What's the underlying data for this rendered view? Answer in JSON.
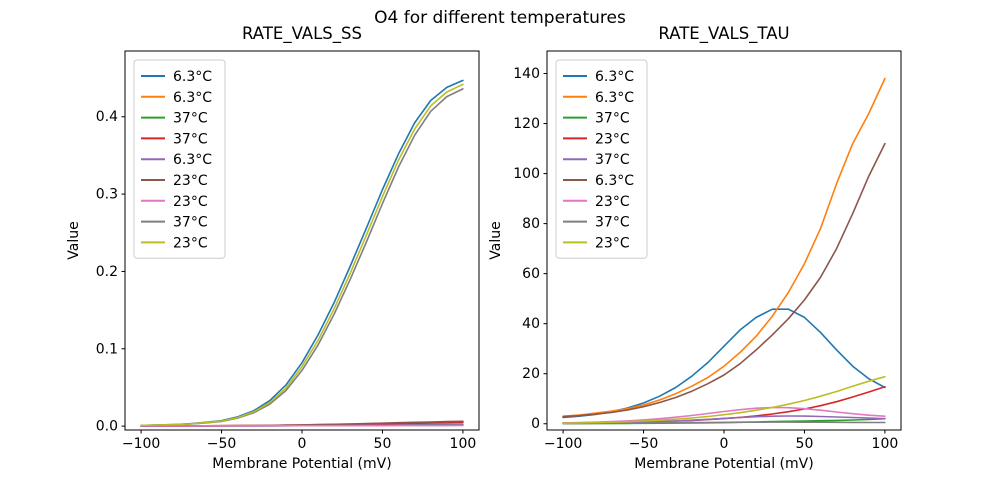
{
  "figure": {
    "suptitle": "O4 for different temperatures",
    "background": "#ffffff",
    "text_color": "#000000"
  },
  "chart_data": [
    {
      "type": "line",
      "title": "RATE_VALS_SS",
      "xlabel": "Membrane Potential (mV)",
      "ylabel": "Value",
      "xlim": [
        -110,
        110
      ],
      "ylim": [
        -0.005,
        0.485
      ],
      "grid": false,
      "legend_position": "upper left",
      "xticks": [
        -100,
        -50,
        0,
        50,
        100
      ],
      "xtick_labels": [
        "−100",
        "−50",
        "0",
        "50",
        "100"
      ],
      "yticks": [
        0.0,
        0.1,
        0.2,
        0.3,
        0.4
      ],
      "ytick_labels": [
        "0.0",
        "0.1",
        "0.2",
        "0.3",
        "0.4"
      ],
      "x": [
        -100,
        -90,
        -80,
        -70,
        -60,
        -50,
        -40,
        -30,
        -20,
        -10,
        0,
        10,
        20,
        30,
        40,
        50,
        60,
        70,
        80,
        90,
        100
      ],
      "series": [
        {
          "name": "6.3°C",
          "color": "#1f77b4",
          "values": [
            0.001,
            0.0015,
            0.002,
            0.003,
            0.005,
            0.007,
            0.012,
            0.02,
            0.033,
            0.053,
            0.082,
            0.118,
            0.16,
            0.207,
            0.256,
            0.306,
            0.352,
            0.392,
            0.421,
            0.438,
            0.447
          ]
        },
        {
          "name": "6.3°C",
          "color": "#ff7f0e",
          "values": [
            0.0002,
            0.0002,
            0.0003,
            0.0003,
            0.0004,
            0.0005,
            0.0006,
            0.0008,
            0.001,
            0.0012,
            0.0015,
            0.0018,
            0.0022,
            0.0026,
            0.003,
            0.0035,
            0.004,
            0.0044,
            0.0048,
            0.0052,
            0.0055
          ]
        },
        {
          "name": "37°C",
          "color": "#2ca02c",
          "values": [
            0.0001,
            0.0001,
            0.0001,
            0.0002,
            0.0002,
            0.0002,
            0.0003,
            0.0003,
            0.0004,
            0.0005,
            0.0006,
            0.0007,
            0.0009,
            0.001,
            0.0012,
            0.0014,
            0.0016,
            0.0018,
            0.002,
            0.0021,
            0.0022
          ]
        },
        {
          "name": "37°C",
          "color": "#d62728",
          "values": [
            0.0002,
            0.0002,
            0.0002,
            0.0003,
            0.0003,
            0.0004,
            0.0005,
            0.0006,
            0.0008,
            0.001,
            0.0012,
            0.0015,
            0.0018,
            0.0021,
            0.0025,
            0.0029,
            0.0033,
            0.0037,
            0.0041,
            0.0044,
            0.0047
          ]
        },
        {
          "name": "6.3°C",
          "color": "#9467bd",
          "values": [
            0.0001,
            0.0001,
            0.0001,
            0.0001,
            0.0002,
            0.0002,
            0.0002,
            0.0003,
            0.0003,
            0.0004,
            0.0005,
            0.0006,
            0.0007,
            0.0008,
            0.0009,
            0.0011,
            0.0012,
            0.0013,
            0.0014,
            0.0015,
            0.0016
          ]
        },
        {
          "name": "23°C",
          "color": "#8c564b",
          "values": [
            0.0002,
            0.0003,
            0.0003,
            0.0004,
            0.0004,
            0.0005,
            0.0007,
            0.0008,
            0.001,
            0.0013,
            0.0016,
            0.002,
            0.0024,
            0.0028,
            0.0033,
            0.0038,
            0.0044,
            0.0049,
            0.0054,
            0.0058,
            0.0062
          ]
        },
        {
          "name": "23°C",
          "color": "#e377c2",
          "values": [
            0.0003,
            0.0003,
            0.0003,
            0.0003,
            0.0004,
            0.0004,
            0.0004,
            0.0004,
            0.0005,
            0.0005,
            0.0005,
            0.0005,
            0.0006,
            0.0006,
            0.0006,
            0.0006,
            0.0007,
            0.0007,
            0.0007,
            0.0007,
            0.0008
          ]
        },
        {
          "name": "37°C",
          "color": "#7f7f7f",
          "values": [
            0.0009,
            0.0013,
            0.0018,
            0.0026,
            0.0042,
            0.006,
            0.0104,
            0.0172,
            0.0284,
            0.046,
            0.072,
            0.105,
            0.145,
            0.19,
            0.238,
            0.288,
            0.335,
            0.376,
            0.407,
            0.426,
            0.436
          ]
        },
        {
          "name": "23°C",
          "color": "#bcbd22",
          "values": [
            0.001,
            0.0014,
            0.002,
            0.0028,
            0.0046,
            0.0065,
            0.011,
            0.0185,
            0.0305,
            0.049,
            0.077,
            0.111,
            0.152,
            0.198,
            0.247,
            0.297,
            0.344,
            0.384,
            0.414,
            0.432,
            0.442
          ]
        }
      ]
    },
    {
      "type": "line",
      "title": "RATE_VALS_TAU",
      "xlabel": "Membrane Potential (mV)",
      "ylabel": "Value",
      "xlim": [
        -110,
        110
      ],
      "ylim": [
        -2.5,
        149
      ],
      "grid": false,
      "legend_position": "upper left",
      "xticks": [
        -100,
        -50,
        0,
        50,
        100
      ],
      "xtick_labels": [
        "−100",
        "−50",
        "0",
        "50",
        "100"
      ],
      "yticks": [
        0,
        20,
        40,
        60,
        80,
        100,
        120,
        140
      ],
      "ytick_labels": [
        "0",
        "20",
        "40",
        "60",
        "80",
        "100",
        "120",
        "140"
      ],
      "x": [
        -100,
        -90,
        -80,
        -70,
        -60,
        -50,
        -40,
        -30,
        -20,
        -10,
        0,
        10,
        20,
        30,
        40,
        50,
        60,
        70,
        80,
        90,
        100
      ],
      "series": [
        {
          "name": "6.3°C",
          "color": "#1f77b4",
          "values": [
            2.5,
            3.0,
            3.7,
            4.8,
            6.3,
            8.3,
            11.0,
            14.5,
            19.0,
            24.5,
            31.0,
            37.5,
            42.5,
            45.8,
            45.8,
            42.5,
            36.5,
            29.5,
            23.0,
            18.0,
            14.5
          ]
        },
        {
          "name": "6.3°C",
          "color": "#ff7f0e",
          "values": [
            3.0,
            3.5,
            4.2,
            5.0,
            6.0,
            7.5,
            9.5,
            12.0,
            15.0,
            18.5,
            23.0,
            28.5,
            35.0,
            43.0,
            52.5,
            64.0,
            78.0,
            96.0,
            112.0,
            124.0,
            138.0
          ]
        },
        {
          "name": "37°C",
          "color": "#2ca02c",
          "values": [
            0.05,
            0.06,
            0.08,
            0.1,
            0.13,
            0.16,
            0.2,
            0.25,
            0.31,
            0.38,
            0.47,
            0.57,
            0.7,
            0.84,
            0.98,
            1.1,
            1.2,
            1.35,
            1.5,
            1.7,
            2.0
          ]
        },
        {
          "name": "23°C",
          "color": "#d62728",
          "values": [
            0.3,
            0.35,
            0.42,
            0.5,
            0.6,
            0.73,
            0.9,
            1.1,
            1.35,
            1.65,
            2.05,
            2.55,
            3.15,
            3.9,
            4.8,
            5.9,
            7.2,
            8.8,
            10.7,
            12.7,
            14.8
          ]
        },
        {
          "name": "37°C",
          "color": "#9467bd",
          "values": [
            0.2,
            0.25,
            0.32,
            0.4,
            0.5,
            0.65,
            0.85,
            1.1,
            1.4,
            1.75,
            2.15,
            2.5,
            2.8,
            3.0,
            3.1,
            3.05,
            2.9,
            2.7,
            2.5,
            2.25,
            2.0
          ]
        },
        {
          "name": "6.3°C",
          "color": "#8c564b",
          "values": [
            2.8,
            3.2,
            3.8,
            4.5,
            5.5,
            6.8,
            8.5,
            10.5,
            13.0,
            16.0,
            19.5,
            24.0,
            29.5,
            35.5,
            42.0,
            49.5,
            58.5,
            70.0,
            84.0,
            99.0,
            112.0
          ]
        },
        {
          "name": "23°C",
          "color": "#e377c2",
          "values": [
            0.3,
            0.45,
            0.6,
            0.85,
            1.15,
            1.55,
            2.0,
            2.6,
            3.3,
            4.1,
            4.9,
            5.6,
            6.2,
            6.5,
            6.4,
            6.0,
            5.4,
            4.7,
            4.0,
            3.4,
            3.0
          ]
        },
        {
          "name": "37°C",
          "color": "#7f7f7f",
          "values": [
            0.1,
            0.12,
            0.15,
            0.18,
            0.22,
            0.27,
            0.32,
            0.38,
            0.44,
            0.5,
            0.55,
            0.6,
            0.63,
            0.65,
            0.65,
            0.63,
            0.6,
            0.57,
            0.53,
            0.5,
            0.48
          ]
        },
        {
          "name": "23°C",
          "color": "#bcbd22",
          "values": [
            0.2,
            0.3,
            0.45,
            0.6,
            0.8,
            1.1,
            1.4,
            1.8,
            2.3,
            2.9,
            3.6,
            4.4,
            5.4,
            6.5,
            7.8,
            9.3,
            11.0,
            12.9,
            15.0,
            17.0,
            18.8
          ]
        }
      ]
    }
  ]
}
